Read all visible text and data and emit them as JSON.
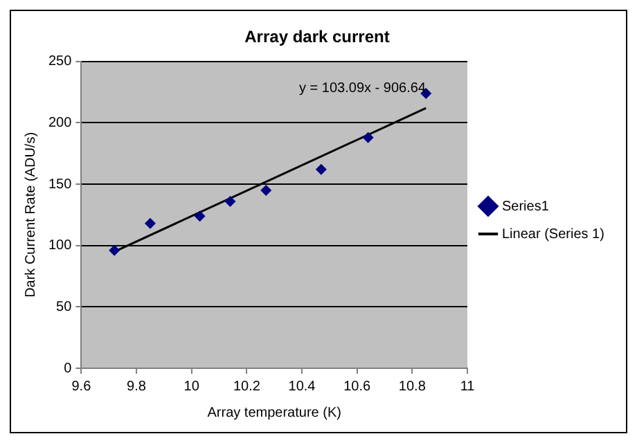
{
  "chart_data": {
    "type": "scatter",
    "title": "Array dark current",
    "xlabel": "Array temperature (K)",
    "ylabel": "Dark Current Rate (ADU/s)",
    "xlim": [
      9.6,
      11
    ],
    "xticks": [
      9.6,
      9.8,
      10,
      10.2,
      10.4,
      10.6,
      10.8,
      11
    ],
    "ylim": [
      0,
      250
    ],
    "yticks": [
      0,
      50,
      100,
      150,
      200,
      250
    ],
    "grid": "y",
    "legend": "right",
    "annotations": [
      "y = 103.09x - 906.64"
    ],
    "series": [
      {
        "name": "Series1",
        "type": "scatter",
        "color": "#000080",
        "marker": "diamond",
        "x": [
          9.72,
          9.85,
          10.03,
          10.14,
          10.27,
          10.47,
          10.64,
          10.85
        ],
        "values": [
          96,
          118,
          124,
          136,
          145,
          162,
          188,
          224
        ]
      },
      {
        "name": "Linear (Series 1)",
        "type": "line",
        "color": "#000000",
        "marker": "none",
        "line_style": "solid",
        "x": [
          9.72,
          10.85
        ],
        "values": [
          95,
          212
        ]
      }
    ]
  }
}
